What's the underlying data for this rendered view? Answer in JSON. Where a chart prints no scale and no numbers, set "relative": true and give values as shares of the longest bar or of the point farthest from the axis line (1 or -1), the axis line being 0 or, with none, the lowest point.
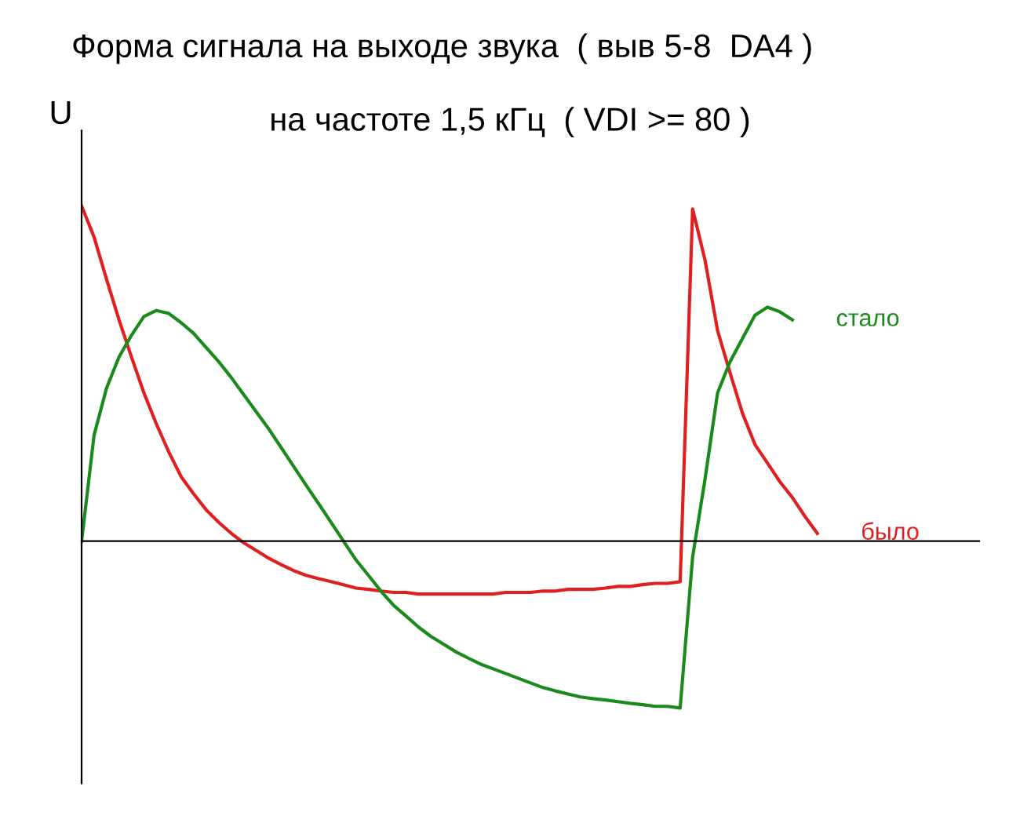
{
  "chart_data": {
    "type": "line",
    "title": "Форма сигнала на выходе звука  ( выв 5-8  DA4 )",
    "subtitle": "на частоте 1,5 кГц  ( VDI >= 80 )",
    "ylabel": "U",
    "relative": true,
    "tick_labels": false,
    "grid": false,
    "legend": false,
    "marker": "none",
    "line_style": "solid",
    "categories": [
      null,
      null,
      null,
      null,
      null,
      null,
      null,
      null,
      null,
      null,
      null,
      null,
      null,
      null,
      null,
      null,
      null,
      null,
      null,
      null,
      null,
      null,
      null,
      null,
      null,
      null,
      null,
      null,
      null,
      null,
      null,
      null,
      null,
      null,
      null,
      null,
      null,
      null,
      null,
      null,
      null,
      null,
      null,
      null,
      null,
      null,
      null,
      null,
      null,
      null,
      null,
      null,
      null,
      null,
      null,
      null,
      null,
      null,
      null,
      null
    ],
    "series": [
      {
        "name": "было",
        "color": "#e02020",
        "values": [
          1.0,
          0.907,
          0.781,
          0.66,
          0.549,
          0.442,
          0.349,
          0.265,
          0.191,
          0.14,
          0.093,
          0.056,
          0.023,
          -0.005,
          -0.028,
          -0.051,
          -0.07,
          -0.088,
          -0.102,
          -0.112,
          -0.121,
          -0.13,
          -0.14,
          -0.144,
          -0.149,
          -0.153,
          -0.153,
          -0.158,
          -0.158,
          -0.158,
          -0.158,
          -0.158,
          -0.158,
          -0.158,
          -0.153,
          -0.153,
          -0.153,
          -0.149,
          -0.149,
          -0.144,
          -0.144,
          -0.144,
          -0.14,
          -0.135,
          -0.135,
          -0.13,
          -0.126,
          -0.126,
          -0.121,
          0.991,
          0.837,
          0.628,
          0.502,
          0.381,
          0.288,
          0.233,
          0.177,
          0.13,
          0.074,
          0.023
        ]
      },
      {
        "name": "стало",
        "color": "#1a8a1a",
        "values": [
          0,
          0.316,
          0.456,
          0.549,
          0.614,
          0.67,
          0.688,
          0.679,
          0.651,
          0.619,
          0.577,
          0.535,
          0.488,
          0.437,
          0.386,
          0.335,
          0.279,
          0.223,
          0.167,
          0.112,
          0.056,
          0,
          -0.056,
          -0.102,
          -0.149,
          -0.191,
          -0.223,
          -0.256,
          -0.284,
          -0.307,
          -0.33,
          -0.349,
          -0.367,
          -0.381,
          -0.395,
          -0.409,
          -0.423,
          -0.437,
          -0.447,
          -0.456,
          -0.465,
          -0.47,
          -0.474,
          -0.479,
          -0.484,
          -0.488,
          -0.493,
          -0.493,
          -0.498,
          -0.047,
          0.186,
          0.442,
          0.535,
          0.605,
          0.674,
          0.698,
          0.684,
          0.66,
          null,
          null
        ]
      }
    ]
  }
}
